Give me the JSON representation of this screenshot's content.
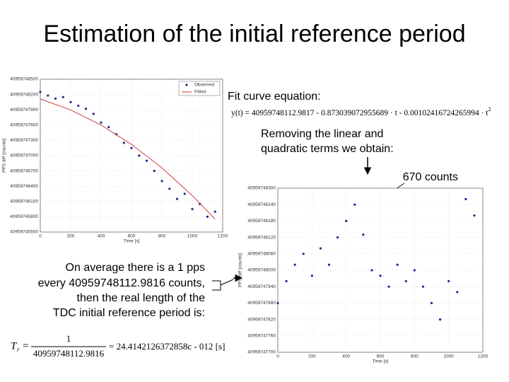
{
  "title": "Estimation of the initial reference period",
  "texts": {
    "fit_label": "Fit curve equation:",
    "fit_equation": "y(t) = 40959748112.9817 - 0.873039072955689 · t - 0.00102416724265994 · t",
    "fit_exponent": "2",
    "removing": [
      "Removing the linear and",
      "quadratic terms we obtain:"
    ],
    "counts": "670 counts",
    "average": [
      "On average there is a 1 pps",
      "every 40959748112.9816 counts,",
      "then the real length of the",
      "TDC initial reference period is:"
    ],
    "period_symbol": "T",
    "period_sub": "r",
    "period_num": "1",
    "period_den": "40959748112.9816",
    "period_result": "= 24.4142126372858c - 012 [s]"
  },
  "chart_data": [
    {
      "type": "scatter",
      "xlabel": "Time [s]",
      "ylabel": "PPS diff [counts]",
      "xlim": [
        0,
        1200
      ],
      "xticks": [
        0,
        200,
        400,
        600,
        800,
        1000,
        1200
      ],
      "ylim": [
        40959745500,
        40959748500
      ],
      "yticks": [
        40959745500,
        40959745800,
        40959746100,
        40959746400,
        40959746700,
        40959747000,
        40959747300,
        40959747600,
        40959747900,
        40959748200,
        40959748500
      ],
      "grid": true,
      "legend": "upper-right",
      "series": [
        {
          "name": "Observed",
          "color": "#1f2a8a",
          "mode": "markers",
          "x": [
            0,
            50,
            100,
            150,
            200,
            250,
            300,
            350,
            400,
            450,
            500,
            550,
            600,
            650,
            700,
            750,
            800,
            850,
            900,
            950,
            1000,
            1050,
            1100,
            1150
          ],
          "values": [
            40959748250,
            40959748180,
            40959748120,
            40959748150,
            40959748050,
            40959747980,
            40959747920,
            40959747820,
            40959747650,
            40959747560,
            40959747420,
            40959747250,
            40959747150,
            40959747000,
            40959746900,
            40959746700,
            40959746500,
            40959746350,
            40959746150,
            40959746250,
            40959745950,
            40959746050,
            40959745800,
            40959745900
          ]
        },
        {
          "name": "Fitted",
          "color": "#d04040",
          "mode": "line",
          "x": [
            0,
            200,
            400,
            600,
            800,
            1000,
            1150
          ],
          "values": [
            40959748113,
            40959747897,
            40959747600,
            40959747220,
            40959746760,
            40959746216,
            40959745755
          ]
        }
      ]
    },
    {
      "type": "scatter",
      "xlabel": "Time [s]",
      "ylabel": "PPS diff [counts]",
      "xlim": [
        0,
        1200
      ],
      "xticks": [
        0,
        200,
        400,
        600,
        800,
        1000,
        1200
      ],
      "ylim": [
        40959747700,
        40959748300
      ],
      "yticks": [
        40959747700,
        40959747760,
        40959747820,
        40959747880,
        40959747940,
        40959748000,
        40959748060,
        40959748120,
        40959748180,
        40959748240,
        40959748300
      ],
      "grid": true,
      "series": [
        {
          "name": "Observed",
          "color": "#1f2a8a",
          "mode": "markers",
          "x": [
            0,
            50,
            100,
            150,
            200,
            250,
            300,
            350,
            400,
            450,
            500,
            550,
            600,
            650,
            700,
            750,
            800,
            850,
            900,
            950,
            1000,
            1050,
            1100,
            1150
          ],
          "values": [
            40959747880,
            40959747960,
            40959748020,
            40959748060,
            40959747980,
            40959748080,
            40959748020,
            40959748120,
            40959748180,
            40959748240,
            40959748130,
            40959748000,
            40959747980,
            40959747940,
            40959748020,
            40959747960,
            40959748000,
            40959747940,
            40959747880,
            40959747820,
            40959747960,
            40959747920,
            40959748260,
            40959748200
          ]
        }
      ]
    }
  ]
}
